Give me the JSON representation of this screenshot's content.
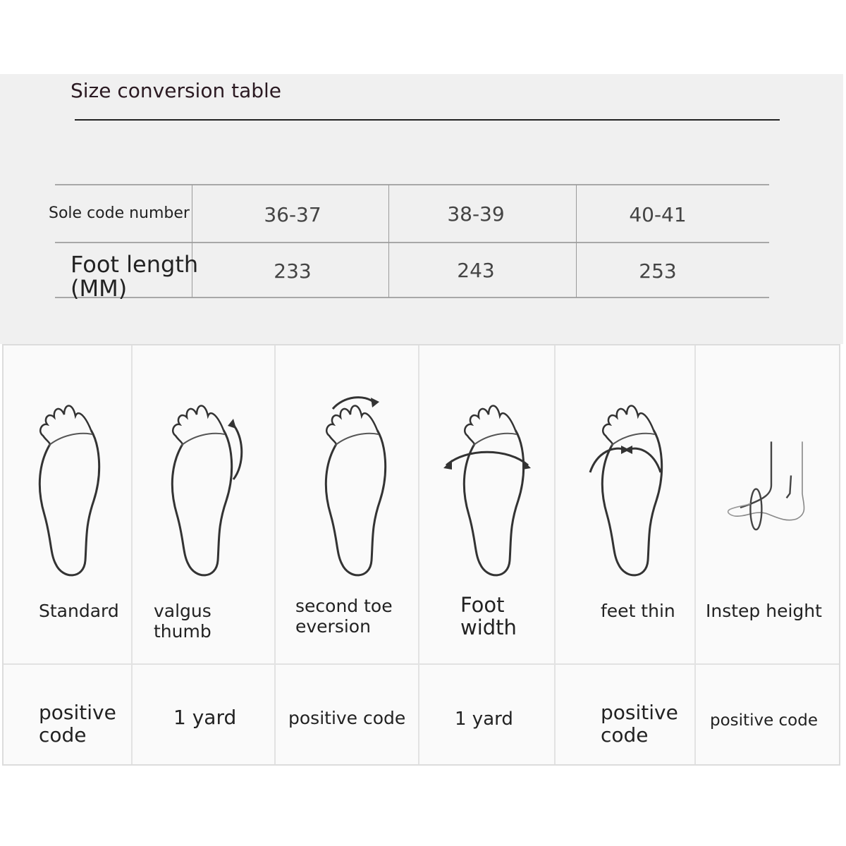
{
  "title": "Size conversion table",
  "size_table": {
    "row_labels": [
      "Sole code number",
      "Foot length (MM)"
    ],
    "foot_length_label_line1": "Foot length",
    "foot_length_label_line2": "(MM)",
    "columns": [
      {
        "sole_code": "36-37",
        "foot_length": "233"
      },
      {
        "sole_code": "38-39",
        "foot_length": "243"
      },
      {
        "sole_code": "40-41",
        "foot_length": "253"
      }
    ]
  },
  "foot_types": [
    {
      "icon": "standard-foot-icon",
      "label_lines": [
        "Standard"
      ],
      "recommendation_lines": [
        "positive",
        "code"
      ]
    },
    {
      "icon": "valgus-thumb-foot-icon",
      "label_lines": [
        "valgus thumb"
      ],
      "recommendation_lines": [
        "1 yard"
      ]
    },
    {
      "icon": "second-toe-eversion-foot-icon",
      "label_lines": [
        "second toe",
        "eversion"
      ],
      "recommendation_lines": [
        "positive code"
      ]
    },
    {
      "icon": "foot-width-icon",
      "label_lines": [
        "Foot",
        "width"
      ],
      "recommendation_lines": [
        "1 yard"
      ]
    },
    {
      "icon": "feet-thin-icon",
      "label_lines": [
        "feet thin"
      ],
      "recommendation_lines": [
        "positive",
        "code"
      ]
    },
    {
      "icon": "instep-height-icon",
      "label_lines": [
        "Instep height"
      ],
      "recommendation_lines": [
        "positive code"
      ]
    }
  ]
}
